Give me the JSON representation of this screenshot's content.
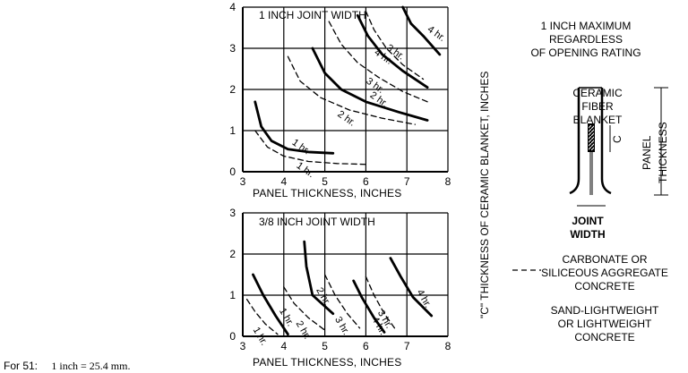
{
  "footnote": {
    "prefix": "For 51:",
    "text": "1 inch = 25.4 mm."
  },
  "y_axis_label": "\"C\" THICKNESS OF CERAMIC BLANKET, INCHES",
  "detail": {
    "max_note_line1": "1 INCH MAXIMUM REGARDLESS",
    "max_note_line2": "OF OPENING RATING",
    "blanket_line1": "CERAMIC FIBER",
    "blanket_line2": "BLANKET",
    "c_label": "C",
    "panel_thickness_label_1": "PANEL",
    "panel_thickness_label_2": "THICKNESS",
    "joint_line1": "JOINT",
    "joint_line2": "WIDTH"
  },
  "legend": {
    "dashed_line1": "CARBONATE OR",
    "dashed_line2": "SILICEOUS AGGREGATE",
    "dashed_line3": "CONCRETE",
    "solid_line1": "SAND-LIGHTWEIGHT",
    "solid_line2": "OR LIGHTWEIGHT",
    "solid_line3": "CONCRETE"
  },
  "chart_data": [
    {
      "type": "line",
      "title": "1 INCH JOINT WIDTH",
      "xlabel": "PANEL THICKNESS, INCHES",
      "ylabel": "\"C\" THICKNESS OF CERAMIC BLANKET, INCHES",
      "xlim": [
        3,
        8
      ],
      "ylim": [
        0,
        4
      ],
      "xticks": [
        "3",
        "4",
        "5",
        "6",
        "7",
        "8"
      ],
      "yticks": [
        "0",
        "1",
        "2",
        "3",
        "4"
      ],
      "grid": true,
      "series": [
        {
          "name": "1 hr.",
          "style": "solid",
          "x": [
            3.3,
            3.45,
            3.7,
            4.1,
            4.6,
            5.2
          ],
          "y": [
            1.7,
            1.1,
            0.75,
            0.55,
            0.48,
            0.45
          ]
        },
        {
          "name": "1 hr.",
          "style": "dashed",
          "x": [
            3.3,
            3.6,
            4.0,
            4.6,
            5.3,
            6.0
          ],
          "y": [
            1.0,
            0.6,
            0.38,
            0.25,
            0.2,
            0.18
          ]
        },
        {
          "name": "2 hr.",
          "style": "solid",
          "x": [
            4.7,
            5.0,
            5.4,
            6.0,
            6.8,
            7.5
          ],
          "y": [
            3.0,
            2.4,
            2.0,
            1.7,
            1.45,
            1.25
          ]
        },
        {
          "name": "2 hr.",
          "style": "dashed",
          "x": [
            4.1,
            4.4,
            4.9,
            5.6,
            6.4,
            7.2
          ],
          "y": [
            2.8,
            2.2,
            1.8,
            1.5,
            1.3,
            1.15
          ]
        },
        {
          "name": "3 hr.",
          "style": "solid",
          "x": [
            5.8,
            6.05,
            6.4,
            6.9,
            7.5
          ],
          "y": [
            3.8,
            3.3,
            2.85,
            2.45,
            2.05
          ]
        },
        {
          "name": "3 hr.",
          "style": "dashed",
          "x": [
            5.1,
            5.4,
            5.8,
            6.3,
            6.9,
            7.5
          ],
          "y": [
            3.65,
            3.1,
            2.65,
            2.3,
            1.95,
            1.7
          ]
        },
        {
          "name": "4 hr.",
          "style": "solid",
          "x": [
            6.9,
            7.1,
            7.4,
            7.8
          ],
          "y": [
            4.0,
            3.6,
            3.3,
            2.85
          ]
        },
        {
          "name": "4 hr.",
          "style": "dashed",
          "x": [
            6.0,
            6.2,
            6.5,
            6.9,
            7.4
          ],
          "y": [
            3.9,
            3.45,
            3.0,
            2.6,
            2.25
          ]
        }
      ]
    },
    {
      "type": "line",
      "title": "3/8 INCH JOINT WIDTH",
      "xlabel": "PANEL THICKNESS, INCHES",
      "ylabel": "\"C\" THICKNESS OF CERAMIC BLANKET, INCHES",
      "xlim": [
        3,
        8
      ],
      "ylim": [
        0,
        3
      ],
      "xticks": [
        "3",
        "4",
        "5",
        "6",
        "7",
        "8"
      ],
      "yticks": [
        "0",
        "1",
        "2",
        "3"
      ],
      "grid": true,
      "series": [
        {
          "name": "1 hr.",
          "style": "solid",
          "x": [
            3.25,
            3.5,
            3.8,
            4.1
          ],
          "y": [
            1.5,
            1.0,
            0.5,
            0.05
          ]
        },
        {
          "name": "1 hr.",
          "style": "dashed",
          "x": [
            3.1,
            3.3,
            3.55,
            3.85
          ],
          "y": [
            0.9,
            0.6,
            0.3,
            0.05
          ]
        },
        {
          "name": "2 hr.",
          "style": "solid",
          "x": [
            4.5,
            4.55,
            4.7,
            5.2
          ],
          "y": [
            2.3,
            1.7,
            1.0,
            0.55
          ]
        },
        {
          "name": "2 hr.",
          "style": "dashed",
          "x": [
            4.0,
            4.25,
            4.6,
            5.0
          ],
          "y": [
            1.2,
            0.8,
            0.45,
            0.15
          ]
        },
        {
          "name": "3 hr.",
          "style": "solid",
          "x": [
            5.7,
            5.9,
            6.2,
            6.45
          ],
          "y": [
            1.35,
            0.95,
            0.45,
            0.1
          ]
        },
        {
          "name": "3 hr.",
          "style": "dashed",
          "x": [
            5.0,
            5.25,
            5.55,
            5.85
          ],
          "y": [
            1.5,
            1.0,
            0.55,
            0.2
          ]
        },
        {
          "name": "4 hr.",
          "style": "solid",
          "x": [
            6.6,
            6.85,
            7.15,
            7.6
          ],
          "y": [
            1.9,
            1.45,
            0.95,
            0.5
          ]
        },
        {
          "name": "4 hr.",
          "style": "dashed",
          "x": [
            6.0,
            6.2,
            6.45,
            6.7
          ],
          "y": [
            1.45,
            1.0,
            0.55,
            0.2
          ]
        }
      ]
    }
  ]
}
